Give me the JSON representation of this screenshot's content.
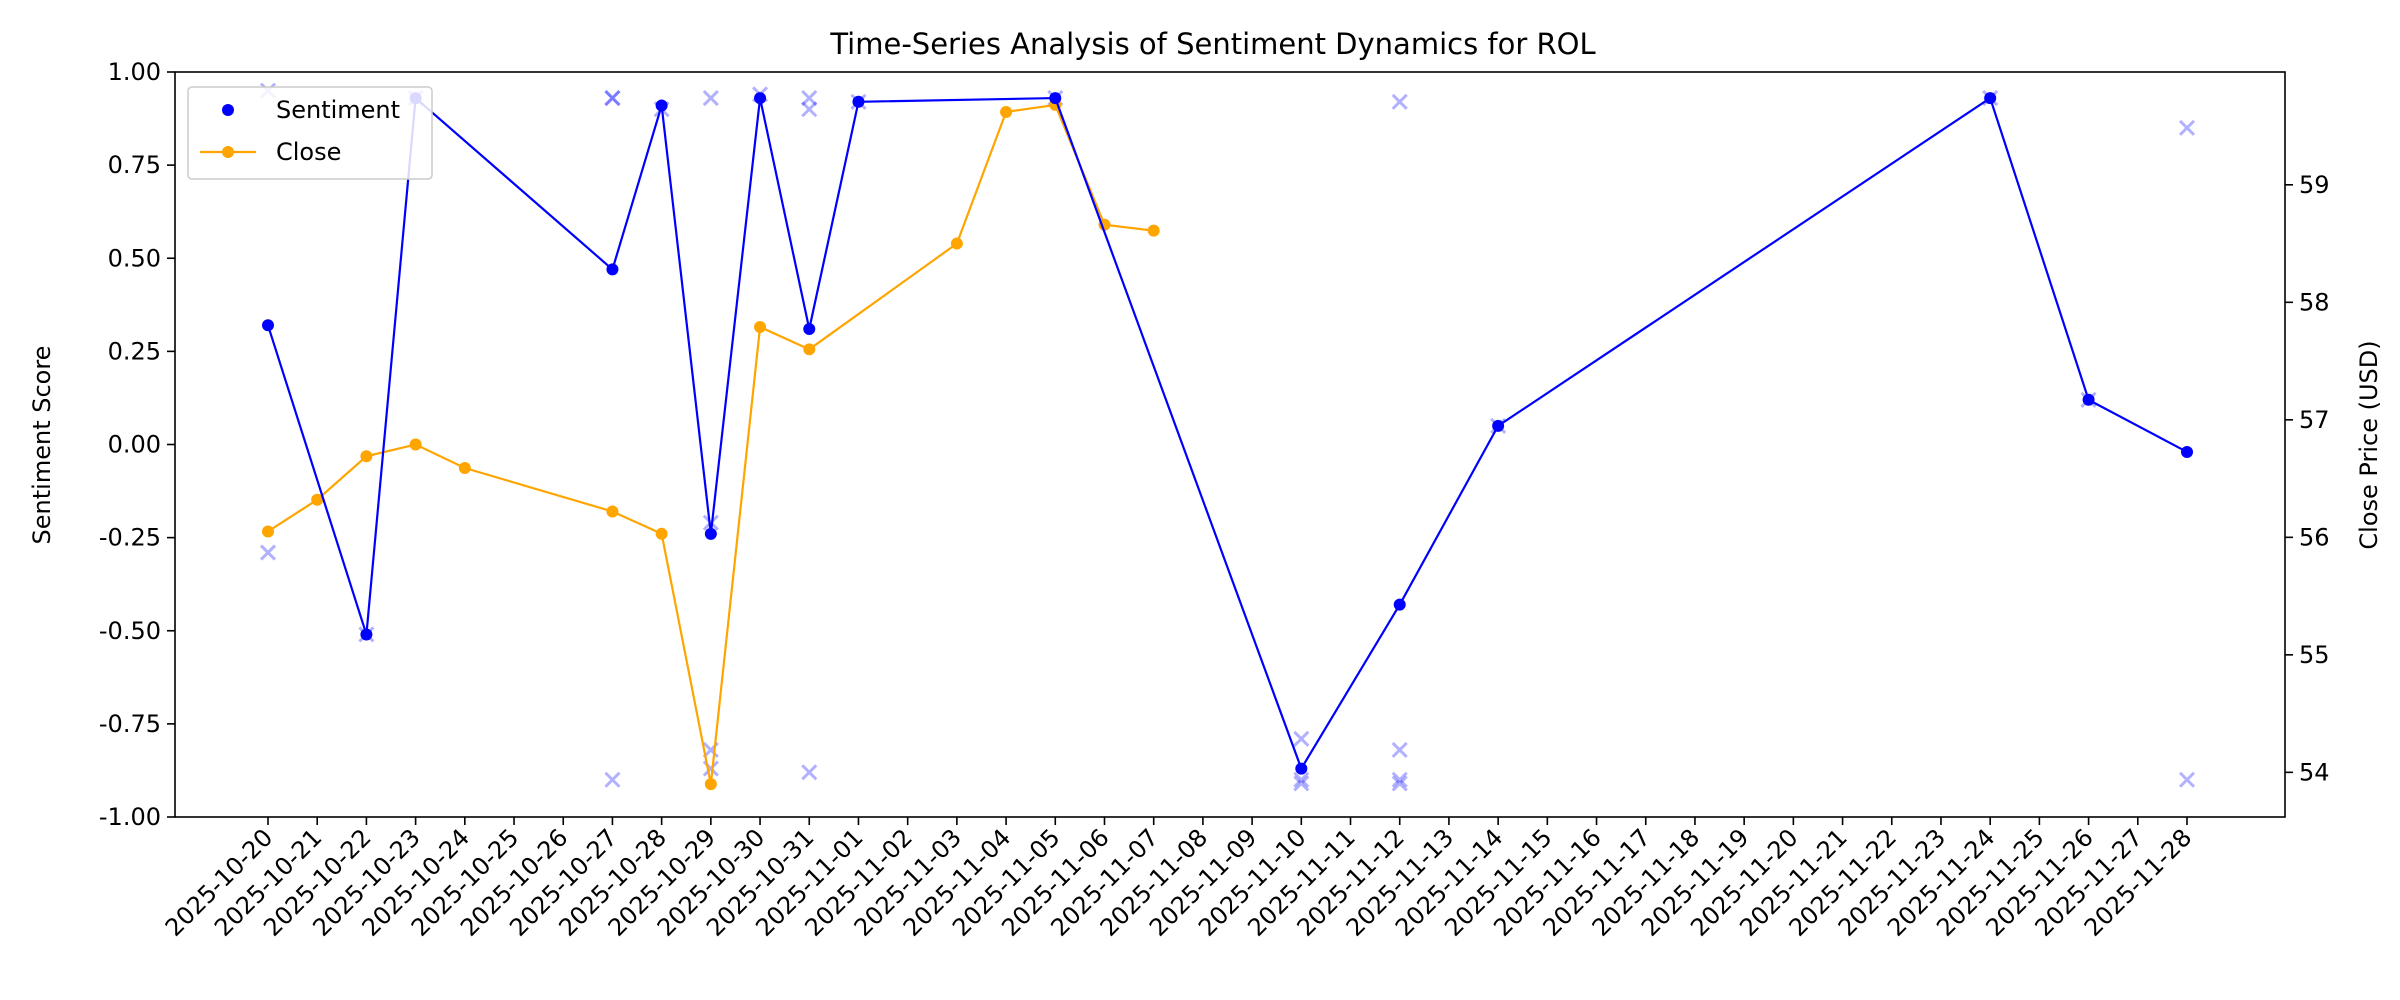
{
  "chart_data": {
    "type": "line",
    "title": "Time-Series Analysis of Sentiment Dynamics for ROL",
    "xlabel": "",
    "ylabel_left": "Sentiment Score",
    "ylabel_right": "Close Price (USD)",
    "ylim_left": [
      -1.0,
      1.0
    ],
    "ylim_right": [
      53.62,
      59.96
    ],
    "left_ticks": [
      "-1.00",
      "-0.75",
      "-0.50",
      "-0.25",
      "0.00",
      "0.25",
      "0.50",
      "0.75",
      "1.00"
    ],
    "left_tick_values": [
      -1.0,
      -0.75,
      -0.5,
      -0.25,
      0.0,
      0.25,
      0.5,
      0.75,
      1.0
    ],
    "right_ticks": [
      "54",
      "55",
      "56",
      "57",
      "58",
      "59"
    ],
    "right_tick_values": [
      54,
      55,
      56,
      57,
      58,
      59
    ],
    "categories": [
      "2025-10-20",
      "2025-10-21",
      "2025-10-22",
      "2025-10-23",
      "2025-10-24",
      "2025-10-25",
      "2025-10-26",
      "2025-10-27",
      "2025-10-28",
      "2025-10-29",
      "2025-10-30",
      "2025-10-31",
      "2025-11-01",
      "2025-11-02",
      "2025-11-03",
      "2025-11-04",
      "2025-11-05",
      "2025-11-06",
      "2025-11-07",
      "2025-11-08",
      "2025-11-09",
      "2025-11-10",
      "2025-11-11",
      "2025-11-12",
      "2025-11-13",
      "2025-11-14",
      "2025-11-15",
      "2025-11-16",
      "2025-11-17",
      "2025-11-18",
      "2025-11-19",
      "2025-11-20",
      "2025-11-21",
      "2025-11-22",
      "2025-11-23",
      "2025-11-24",
      "2025-11-25",
      "2025-11-26",
      "2025-11-27",
      "2025-11-28"
    ],
    "grid": false,
    "legend_position": "upper-left",
    "series": [
      {
        "name": "Sentiment",
        "axis": "left",
        "color": "#0000ff",
        "marker": "dot",
        "points": [
          {
            "x": "2025-10-20",
            "y": 0.32
          },
          {
            "x": "2025-10-22",
            "y": -0.51
          },
          {
            "x": "2025-10-23",
            "y": 0.93
          },
          {
            "x": "2025-10-27",
            "y": 0.47
          },
          {
            "x": "2025-10-28",
            "y": 0.91
          },
          {
            "x": "2025-10-29",
            "y": -0.24
          },
          {
            "x": "2025-10-30",
            "y": 0.93
          },
          {
            "x": "2025-10-31",
            "y": 0.31
          },
          {
            "x": "2025-11-01",
            "y": 0.92
          },
          {
            "x": "2025-11-05",
            "y": 0.93
          },
          {
            "x": "2025-11-10",
            "y": -0.87
          },
          {
            "x": "2025-11-12",
            "y": -0.43
          },
          {
            "x": "2025-11-14",
            "y": 0.05
          },
          {
            "x": "2025-11-24",
            "y": 0.93
          },
          {
            "x": "2025-11-26",
            "y": 0.12
          },
          {
            "x": "2025-11-28",
            "y": -0.02
          }
        ]
      },
      {
        "name": "Close",
        "axis": "right",
        "color": "#ffa500",
        "marker": "dot",
        "points": [
          {
            "x": "2025-10-20",
            "y": 56.05
          },
          {
            "x": "2025-10-21",
            "y": 56.32
          },
          {
            "x": "2025-10-22",
            "y": 56.69
          },
          {
            "x": "2025-10-23",
            "y": 56.79
          },
          {
            "x": "2025-10-24",
            "y": 56.59
          },
          {
            "x": "2025-10-27",
            "y": 56.22
          },
          {
            "x": "2025-10-28",
            "y": 56.03
          },
          {
            "x": "2025-10-29",
            "y": 53.9
          },
          {
            "x": "2025-10-30",
            "y": 57.79
          },
          {
            "x": "2025-10-31",
            "y": 57.6
          },
          {
            "x": "2025-11-03",
            "y": 58.5
          },
          {
            "x": "2025-11-04",
            "y": 59.62
          },
          {
            "x": "2025-11-05",
            "y": 59.68
          },
          {
            "x": "2025-11-06",
            "y": 58.66
          },
          {
            "x": "2025-11-07",
            "y": 58.61
          }
        ]
      }
    ],
    "raw_sentiment_points": {
      "color": "#0000ff",
      "opacity": 0.3,
      "marker": "x",
      "points": [
        {
          "x": "2025-10-20",
          "y": 0.95
        },
        {
          "x": "2025-10-20",
          "y": -0.29
        },
        {
          "x": "2025-10-22",
          "y": -0.51
        },
        {
          "x": "2025-10-23",
          "y": 0.93
        },
        {
          "x": "2025-10-27",
          "y": 0.93
        },
        {
          "x": "2025-10-27",
          "y": 0.93
        },
        {
          "x": "2025-10-27",
          "y": -0.9
        },
        {
          "x": "2025-10-28",
          "y": 0.9
        },
        {
          "x": "2025-10-29",
          "y": 0.93
        },
        {
          "x": "2025-10-29",
          "y": -0.21
        },
        {
          "x": "2025-10-29",
          "y": -0.82
        },
        {
          "x": "2025-10-29",
          "y": -0.87
        },
        {
          "x": "2025-10-30",
          "y": 0.94
        },
        {
          "x": "2025-10-31",
          "y": 0.93
        },
        {
          "x": "2025-10-31",
          "y": 0.9
        },
        {
          "x": "2025-10-31",
          "y": -0.88
        },
        {
          "x": "2025-11-01",
          "y": 0.92
        },
        {
          "x": "2025-11-05",
          "y": 0.93
        },
        {
          "x": "2025-11-10",
          "y": -0.79
        },
        {
          "x": "2025-11-10",
          "y": -0.9
        },
        {
          "x": "2025-11-10",
          "y": -0.91
        },
        {
          "x": "2025-11-12",
          "y": 0.92
        },
        {
          "x": "2025-11-12",
          "y": -0.82
        },
        {
          "x": "2025-11-12",
          "y": -0.9
        },
        {
          "x": "2025-11-12",
          "y": -0.91
        },
        {
          "x": "2025-11-14",
          "y": 0.05
        },
        {
          "x": "2025-11-24",
          "y": 0.93
        },
        {
          "x": "2025-11-26",
          "y": 0.12
        },
        {
          "x": "2025-11-28",
          "y": 0.85
        },
        {
          "x": "2025-11-28",
          "y": -0.9
        }
      ]
    }
  }
}
